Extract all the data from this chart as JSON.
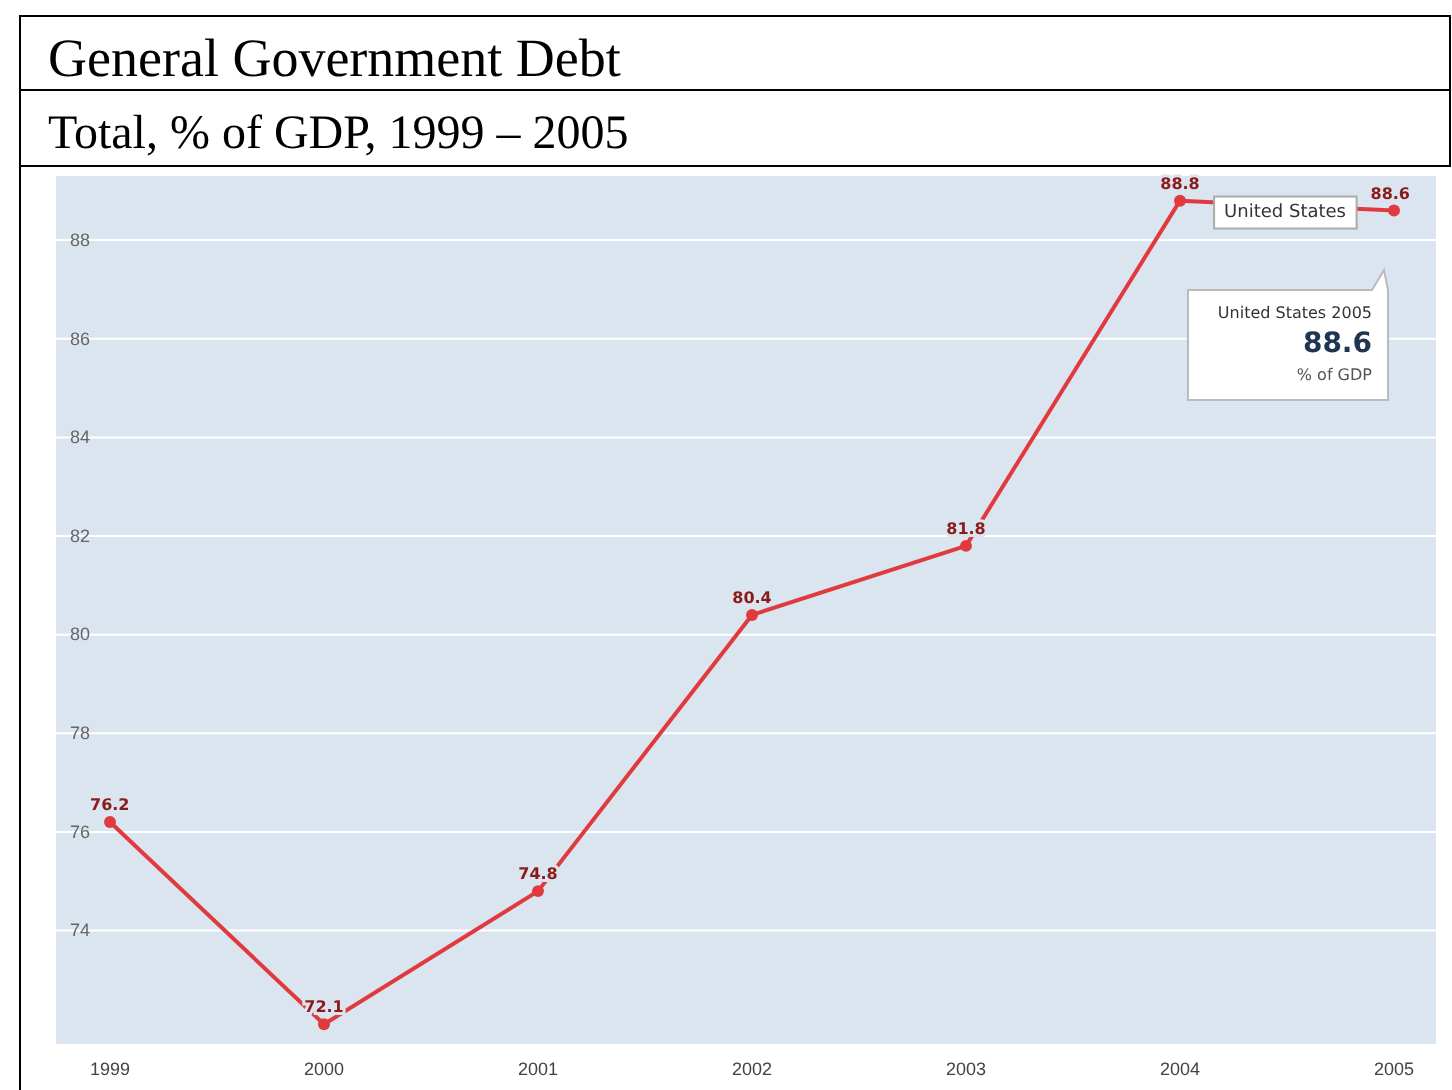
{
  "chart_data": {
    "type": "line",
    "title": "General Government Debt",
    "subtitle": "Total, % of GDP, 1999 – 2005",
    "categories": [
      "1999",
      "2000",
      "2001",
      "2002",
      "2003",
      "2004",
      "2005"
    ],
    "series": [
      {
        "name": "United States",
        "color": "#e03a3e",
        "values": [
          76.2,
          72.1,
          74.8,
          80.4,
          81.8,
          88.8,
          88.6
        ]
      }
    ],
    "ylim": [
      71.7,
      89.3
    ],
    "yticks": [
      74,
      76,
      78,
      80,
      82,
      84,
      86,
      88
    ],
    "grid": "y",
    "marker": "circle",
    "line_style": "solid",
    "data_labels": true,
    "annotations": [
      "United States 2005",
      "88.6",
      "% of GDP"
    ]
  }
}
